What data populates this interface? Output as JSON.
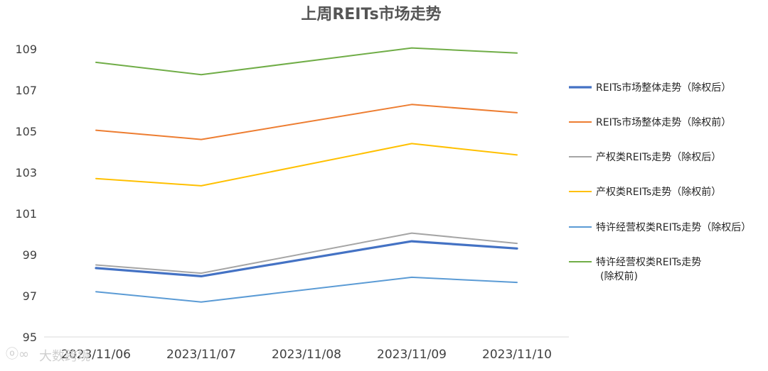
{
  "chart_data": {
    "type": "line",
    "title": "上周REITs市场走势",
    "xlabel": "",
    "ylabel": "",
    "categories": [
      "2023/11/06",
      "2023/11/07",
      "2023/11/08",
      "2023/11/09",
      "2023/11/10"
    ],
    "ylim": [
      95,
      110
    ],
    "yticks": [
      95,
      97,
      99,
      101,
      103,
      105,
      107,
      109
    ],
    "grid": false,
    "legend_position": "right",
    "series": [
      {
        "name": "REITs市场整体走势（除权后）",
        "color": "#4472C4",
        "values": [
          98.35,
          97.95,
          null,
          99.65,
          99.3
        ]
      },
      {
        "name": "REITs市场整体走势（除权前）",
        "color": "#ED7D31",
        "values": [
          105.05,
          104.6,
          null,
          106.3,
          105.9
        ]
      },
      {
        "name": "产权类REITs走势（除权后）",
        "color": "#A5A5A5",
        "values": [
          98.5,
          98.1,
          null,
          100.05,
          99.55
        ]
      },
      {
        "name": "产权类REITs走势（除权前）",
        "color": "#FFC000",
        "values": [
          102.7,
          102.35,
          null,
          104.4,
          103.85
        ]
      },
      {
        "name": "特许经营权类REITs走势（除权后）",
        "color": "#5B9BD5",
        "values": [
          97.2,
          96.7,
          null,
          97.9,
          97.65
        ]
      },
      {
        "name": "特许经营权类REITs走势（除权前）",
        "color": "#70AD47",
        "values": [
          108.35,
          107.75,
          null,
          109.05,
          108.8
        ]
      }
    ]
  },
  "watermark": "大数跨境"
}
